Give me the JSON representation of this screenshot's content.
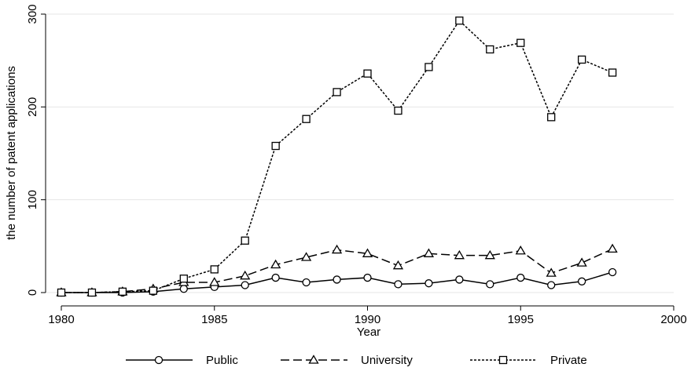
{
  "chart_data": {
    "type": "line",
    "xlabel": "Year",
    "ylabel": "the number of patent applications",
    "xlim": [
      1980,
      2000
    ],
    "ylim": [
      0,
      300
    ],
    "xticks": [
      1980,
      1985,
      1990,
      1995,
      2000
    ],
    "yticks": [
      0,
      100,
      200,
      300
    ],
    "grid": "horizontal",
    "legend_position": "bottom",
    "x": [
      1980,
      1981,
      1982,
      1983,
      1984,
      1985,
      1986,
      1987,
      1988,
      1989,
      1990,
      1991,
      1992,
      1993,
      1994,
      1995,
      1996,
      1997,
      1998
    ],
    "series": [
      {
        "name": "Public",
        "marker": "circle",
        "dash": "solid",
        "values": [
          0,
          0,
          0,
          1,
          4,
          6,
          8,
          16,
          11,
          14,
          16,
          9,
          10,
          14,
          9,
          16,
          8,
          12,
          22
        ]
      },
      {
        "name": "University",
        "marker": "triangle",
        "dash": "dashed",
        "values": [
          0,
          0,
          1,
          4,
          11,
          11,
          18,
          30,
          38,
          46,
          42,
          29,
          42,
          40,
          40,
          45,
          21,
          32,
          47
        ]
      },
      {
        "name": "Private",
        "marker": "square",
        "dash": "dotted",
        "values": [
          0,
          0,
          1,
          2,
          15,
          25,
          56,
          158,
          187,
          216,
          236,
          196,
          243,
          293,
          262,
          269,
          189,
          251,
          237
        ]
      }
    ]
  }
}
